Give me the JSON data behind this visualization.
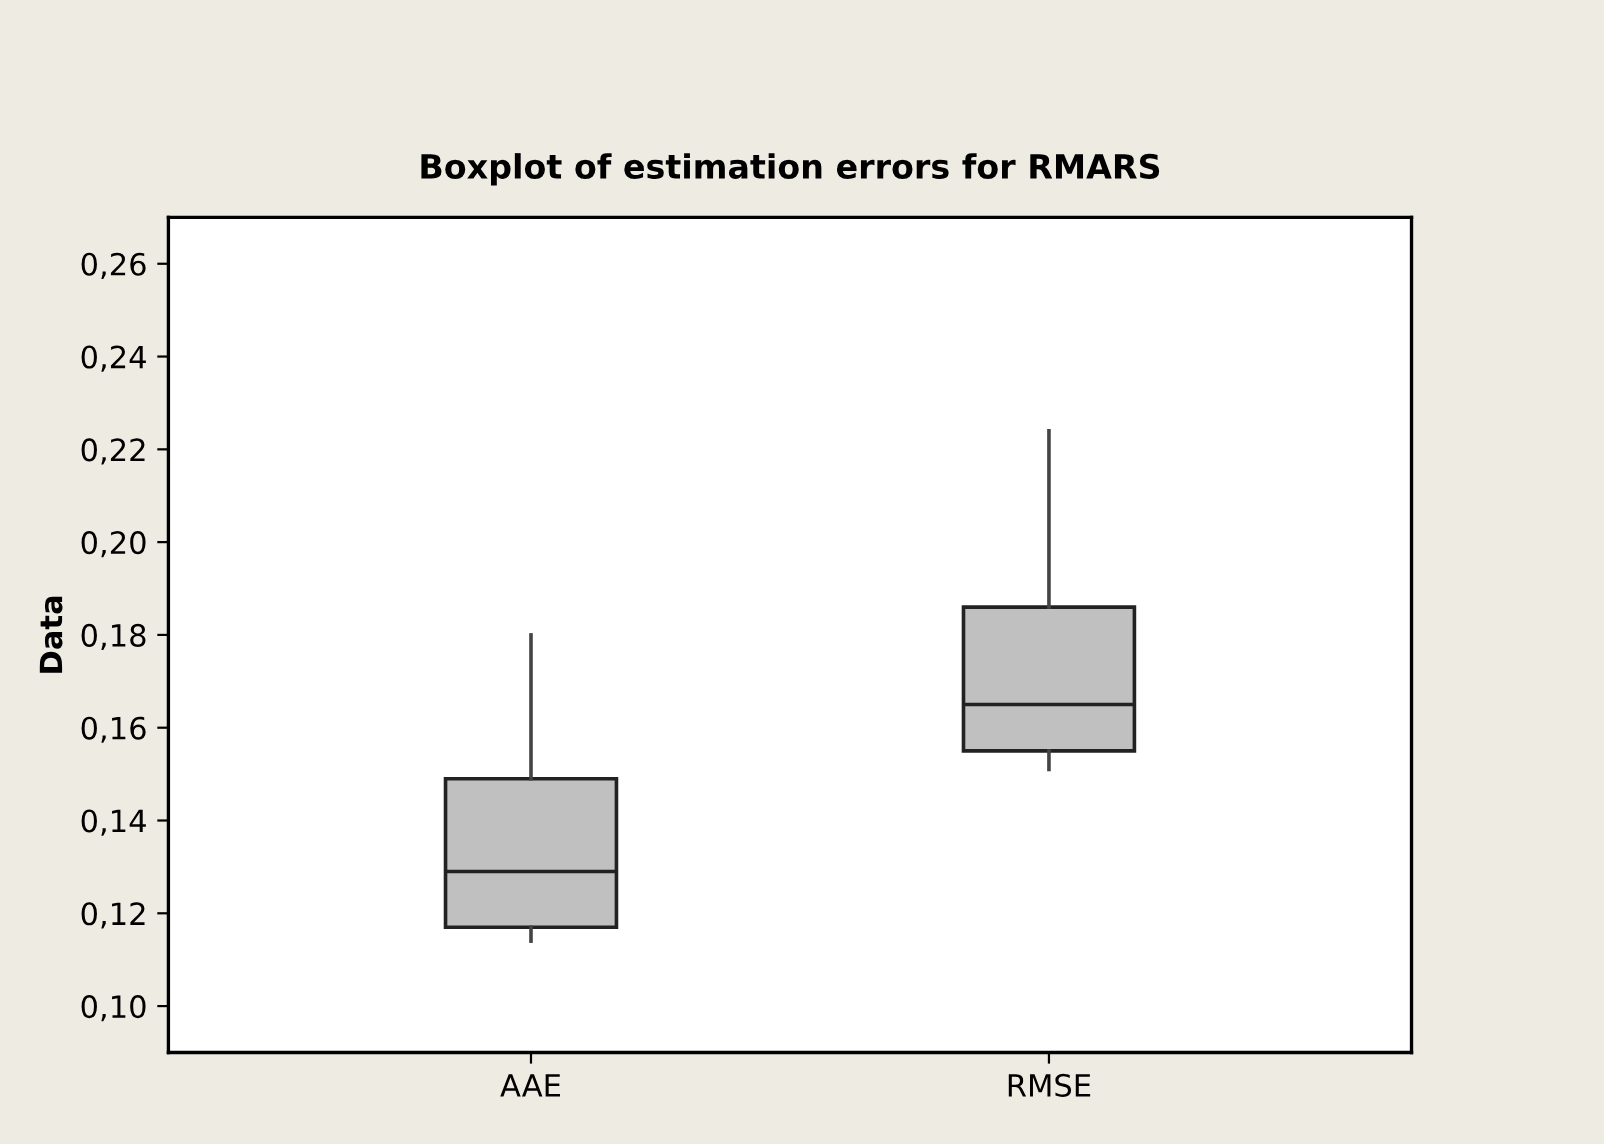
{
  "chart_data": {
    "type": "box",
    "title": "Boxplot of estimation errors for RMARS",
    "ylabel": "Data",
    "categories": [
      "AAE",
      "RMSE"
    ],
    "boxes": [
      {
        "low": 0.114,
        "q1": 0.117,
        "median": 0.129,
        "q3": 0.149,
        "high": 0.18
      },
      {
        "low": 0.151,
        "q1": 0.155,
        "median": 0.165,
        "q3": 0.186,
        "high": 0.224
      }
    ],
    "color": "#c0c0c0",
    "ylim": [
      0.09,
      0.27
    ],
    "yticks": [
      {
        "value": 0.1,
        "label": "0,10"
      },
      {
        "value": 0.12,
        "label": "0,12"
      },
      {
        "value": 0.14,
        "label": "0,14"
      },
      {
        "value": 0.16,
        "label": "0,16"
      },
      {
        "value": 0.18,
        "label": "0,18"
      },
      {
        "value": 0.2,
        "label": "0,20"
      },
      {
        "value": 0.22,
        "label": "0,22"
      },
      {
        "value": 0.24,
        "label": "0,24"
      },
      {
        "value": 0.26,
        "label": "0,26"
      }
    ],
    "grid": false
  }
}
